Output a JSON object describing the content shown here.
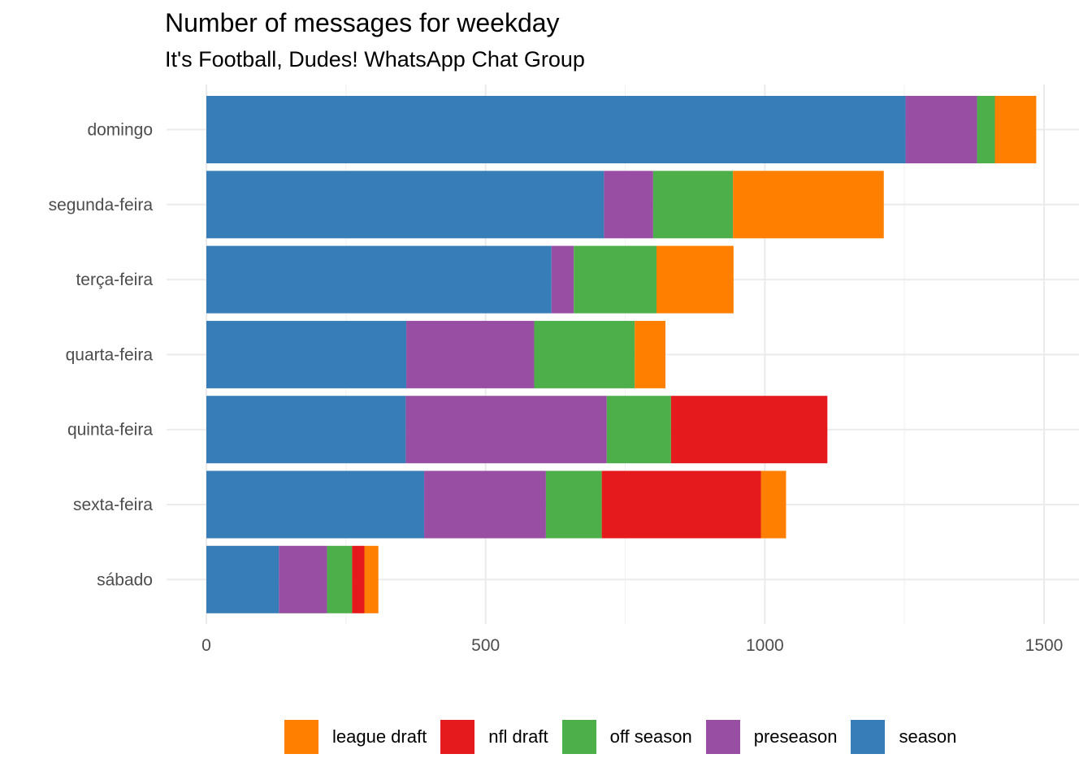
{
  "chart_data": {
    "type": "bar",
    "orientation": "horizontal",
    "stacked": true,
    "title": "Number of messages for weekday",
    "subtitle": "It's Football, Dudes! WhatsApp Chat Group",
    "xlabel": "",
    "ylabel": "",
    "categories": [
      "domingo",
      "segunda-feira",
      "terça-feira",
      "quarta-feira",
      "quinta-feira",
      "sexta-feira",
      "sábado"
    ],
    "xlim": [
      0,
      1500
    ],
    "xticks": [
      0,
      500,
      1000,
      1500
    ],
    "grid": true,
    "legend_position": "bottom",
    "series": [
      {
        "name": "season",
        "color": "#377EB8",
        "values": [
          1252,
          712,
          618,
          358,
          357,
          390,
          130
        ]
      },
      {
        "name": "preseason",
        "color": "#984EA3",
        "values": [
          128,
          88,
          40,
          229,
          360,
          218,
          86
        ]
      },
      {
        "name": "off season",
        "color": "#4DAF4A",
        "values": [
          32,
          143,
          148,
          180,
          115,
          100,
          45
        ]
      },
      {
        "name": "nfl draft",
        "color": "#E41A1C",
        "values": [
          0,
          0,
          0,
          0,
          280,
          285,
          22
        ]
      },
      {
        "name": "league draft",
        "color": "#FF7F00",
        "values": [
          74,
          270,
          138,
          55,
          0,
          45,
          25
        ]
      }
    ],
    "legend_order": [
      "league draft",
      "nfl draft",
      "off season",
      "preseason",
      "season"
    ]
  }
}
